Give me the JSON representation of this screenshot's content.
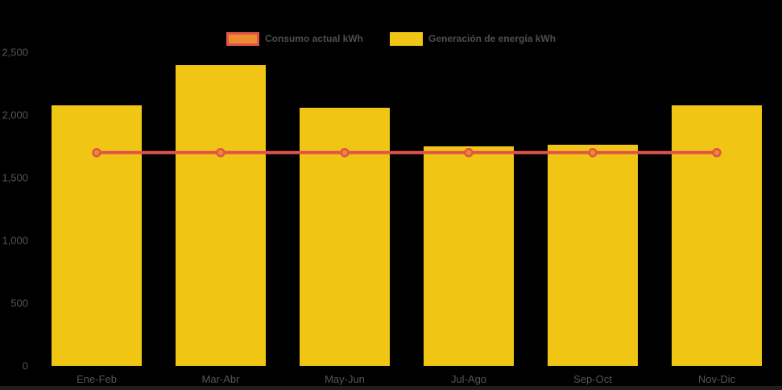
{
  "legend": [
    {
      "label": "Consumo actual kWh",
      "swatch_fill": "#EE8B2E",
      "swatch_border": "#E0534A"
    },
    {
      "label": "Generación de energía kWh",
      "swatch_fill": "#F0C514",
      "swatch_border": "#F0C514"
    }
  ],
  "chart_data": {
    "type": "bar",
    "categories": [
      "Ene-Feb",
      "Mar-Abr",
      "May-Jun",
      "Jul-Ago",
      "Sep-Oct",
      "Nov-Dic"
    ],
    "series": [
      {
        "name": "Consumo actual kWh",
        "type": "line",
        "color": "#E0534A",
        "marker_fill": "#EE8B2E",
        "values": [
          1700,
          1700,
          1700,
          1700,
          1700,
          1700
        ]
      },
      {
        "name": "Generación de energía kWh",
        "type": "bar",
        "color": "#F0C514",
        "values": [
          2080,
          2400,
          2060,
          1750,
          1760,
          2080
        ]
      }
    ],
    "title": "",
    "xlabel": "",
    "ylabel": "",
    "ylim": [
      0,
      2500
    ],
    "yticks": [
      0,
      500,
      1000,
      1500,
      2000,
      2500
    ],
    "ytick_labels": [
      "0",
      "500",
      "1,000",
      "1,500",
      "2,000",
      "2,500"
    ],
    "grid": false,
    "legend_position": "top",
    "background_color": "#000000",
    "axis_text_color": "#555555",
    "legend_text_color": "#4F4F4F"
  }
}
